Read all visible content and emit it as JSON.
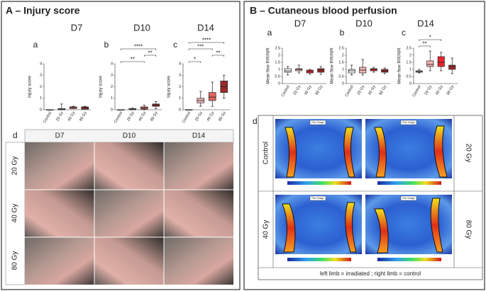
{
  "panel_a": {
    "title": "A – Injury score"
  },
  "panel_b": {
    "title": "B – Cutaneous blood perfusion"
  },
  "chart_data": [
    {
      "type": "box",
      "title": "D7",
      "label": "a",
      "y_label": "Injury score",
      "ylim": [
        0,
        4
      ],
      "yticks": [
        0,
        1,
        2,
        3,
        4
      ],
      "categories": [
        "Control",
        "20 Gy",
        "40 Gy",
        "80 Gy"
      ],
      "colors": [
        "#ffffff",
        "#f2b8b8",
        "#e0675f",
        "#9b2a2a"
      ],
      "min": [
        0,
        0,
        0.1,
        0.05
      ],
      "q1": [
        0,
        0,
        0.1,
        0.05
      ],
      "median": [
        0,
        0.05,
        0.2,
        0.15
      ],
      "q3": [
        0,
        0.1,
        0.25,
        0.25
      ],
      "max": [
        0,
        0.5,
        0.3,
        0.3
      ],
      "brackets": []
    },
    {
      "type": "box",
      "title": "D10",
      "label": "b",
      "y_label": "Injury score",
      "ylim": [
        0,
        4
      ],
      "yticks": [
        0,
        1,
        2,
        3,
        4
      ],
      "categories": [
        "Control",
        "20 Gy",
        "40 Gy",
        "80 Gy"
      ],
      "colors": [
        "#ffffff",
        "#f2b8b8",
        "#e0675f",
        "#9b2a2a"
      ],
      "min": [
        0,
        0,
        0,
        0.1
      ],
      "q1": [
        0,
        0,
        0.05,
        0.3
      ],
      "median": [
        0,
        0.05,
        0.15,
        0.4
      ],
      "q3": [
        0,
        0.1,
        0.25,
        0.5
      ],
      "max": [
        0,
        0.15,
        0.4,
        0.7
      ],
      "brackets": [
        {
          "from": "Control",
          "to": "40 Gy",
          "label": "**"
        },
        {
          "from": "40 Gy",
          "to": "80 Gy",
          "label": "**"
        },
        {
          "from": "Control",
          "to": "80 Gy",
          "label": "****"
        }
      ]
    },
    {
      "type": "box",
      "title": "D14",
      "label": "c",
      "y_label": "Injury score",
      "ylim": [
        0,
        4
      ],
      "yticks": [
        0,
        1,
        2,
        3,
        4
      ],
      "categories": [
        "Control",
        "20 Gy",
        "40 Gy",
        "80 Gy"
      ],
      "colors": [
        "#ffffff",
        "#f2b8b8",
        "#e0675f",
        "#9b2a2a"
      ],
      "min": [
        0,
        0.3,
        0.3,
        1.0
      ],
      "q1": [
        0,
        0.6,
        0.8,
        1.5
      ],
      "median": [
        0,
        0.8,
        1.1,
        2.0
      ],
      "q3": [
        0,
        1.0,
        1.5,
        2.5
      ],
      "max": [
        0,
        1.6,
        2.4,
        3.0
      ],
      "brackets": [
        {
          "from": "Control",
          "to": "20 Gy",
          "label": "*"
        },
        {
          "from": "40 Gy",
          "to": "80 Gy",
          "label": "**"
        },
        {
          "from": "Control",
          "to": "40 Gy",
          "label": "***"
        },
        {
          "from": "Control",
          "to": "80 Gy",
          "label": "****"
        }
      ]
    },
    {
      "type": "box",
      "title": "D7",
      "label": "a",
      "y_label": "Mean flow IRR/NIR",
      "ylim": [
        0,
        2.5
      ],
      "yticks": [
        0,
        0.5,
        1,
        1.5,
        2,
        2.5
      ],
      "categories": [
        "Control",
        "20 Gy",
        "40 Gy",
        "80 Gy"
      ],
      "colors": [
        "#ffffff",
        "#f4b3b3",
        "#e8262c",
        "#a32a2a"
      ],
      "min": [
        0.6,
        0.75,
        0.65,
        0.65
      ],
      "q1": [
        0.8,
        0.9,
        0.75,
        0.8
      ],
      "median": [
        0.9,
        1.0,
        0.85,
        0.95
      ],
      "q3": [
        1.05,
        1.05,
        0.95,
        1.05
      ],
      "max": [
        1.2,
        1.3,
        1.0,
        1.2
      ],
      "brackets": []
    },
    {
      "type": "box",
      "title": "D10",
      "label": "b",
      "y_label": "Mean flow IRR/NIR",
      "ylim": [
        0,
        2.5
      ],
      "yticks": [
        0,
        0.5,
        1,
        1.5,
        2,
        2.5
      ],
      "categories": [
        "Control",
        "20 Gy",
        "40 Gy",
        "80 Gy"
      ],
      "colors": [
        "#ffffff",
        "#f4b3b3",
        "#e8262c",
        "#a32a2a"
      ],
      "min": [
        0.6,
        0.6,
        0.8,
        0.7
      ],
      "q1": [
        0.75,
        0.75,
        0.9,
        0.8
      ],
      "median": [
        0.9,
        0.95,
        1.0,
        0.9
      ],
      "q3": [
        1.0,
        1.15,
        1.05,
        1.0
      ],
      "max": [
        1.3,
        1.7,
        1.15,
        1.1
      ],
      "brackets": []
    },
    {
      "type": "box",
      "title": "D14",
      "label": "c",
      "y_label": "Mean flow IRR/NIR",
      "ylim": [
        0,
        2.5
      ],
      "yticks": [
        0,
        0.5,
        1,
        1.5,
        2,
        2.5
      ],
      "categories": [
        "Control",
        "20 Gy",
        "40 Gy",
        "80 Gy"
      ],
      "colors": [
        "#ffffff",
        "#f4b3b3",
        "#e8262c",
        "#a32a2a"
      ],
      "min": [
        0.75,
        0.9,
        0.9,
        0.7
      ],
      "q1": [
        0.8,
        1.2,
        1.2,
        1.0
      ],
      "median": [
        0.85,
        1.35,
        1.5,
        1.2
      ],
      "q3": [
        0.9,
        1.6,
        1.9,
        1.3
      ],
      "max": [
        1.0,
        2.3,
        2.2,
        1.8
      ],
      "brackets": [
        {
          "from": "Control",
          "to": "20 Gy",
          "label": "**"
        },
        {
          "from": "Control",
          "to": "40 Gy",
          "label": "*"
        }
      ]
    }
  ],
  "photos": {
    "label": "d",
    "columns": [
      "D7",
      "D10",
      "D14"
    ],
    "rows": [
      "20 Gy",
      "40 Gy",
      "80 Gy"
    ]
  },
  "perfusion": {
    "label": "d",
    "rows_left": [
      "Control",
      "40 Gy"
    ],
    "rows_right": [
      "20 Gy",
      "80 Gy"
    ],
    "image_label": "Flux Image",
    "caption": "left limb = irradiated ; right limb = control"
  }
}
